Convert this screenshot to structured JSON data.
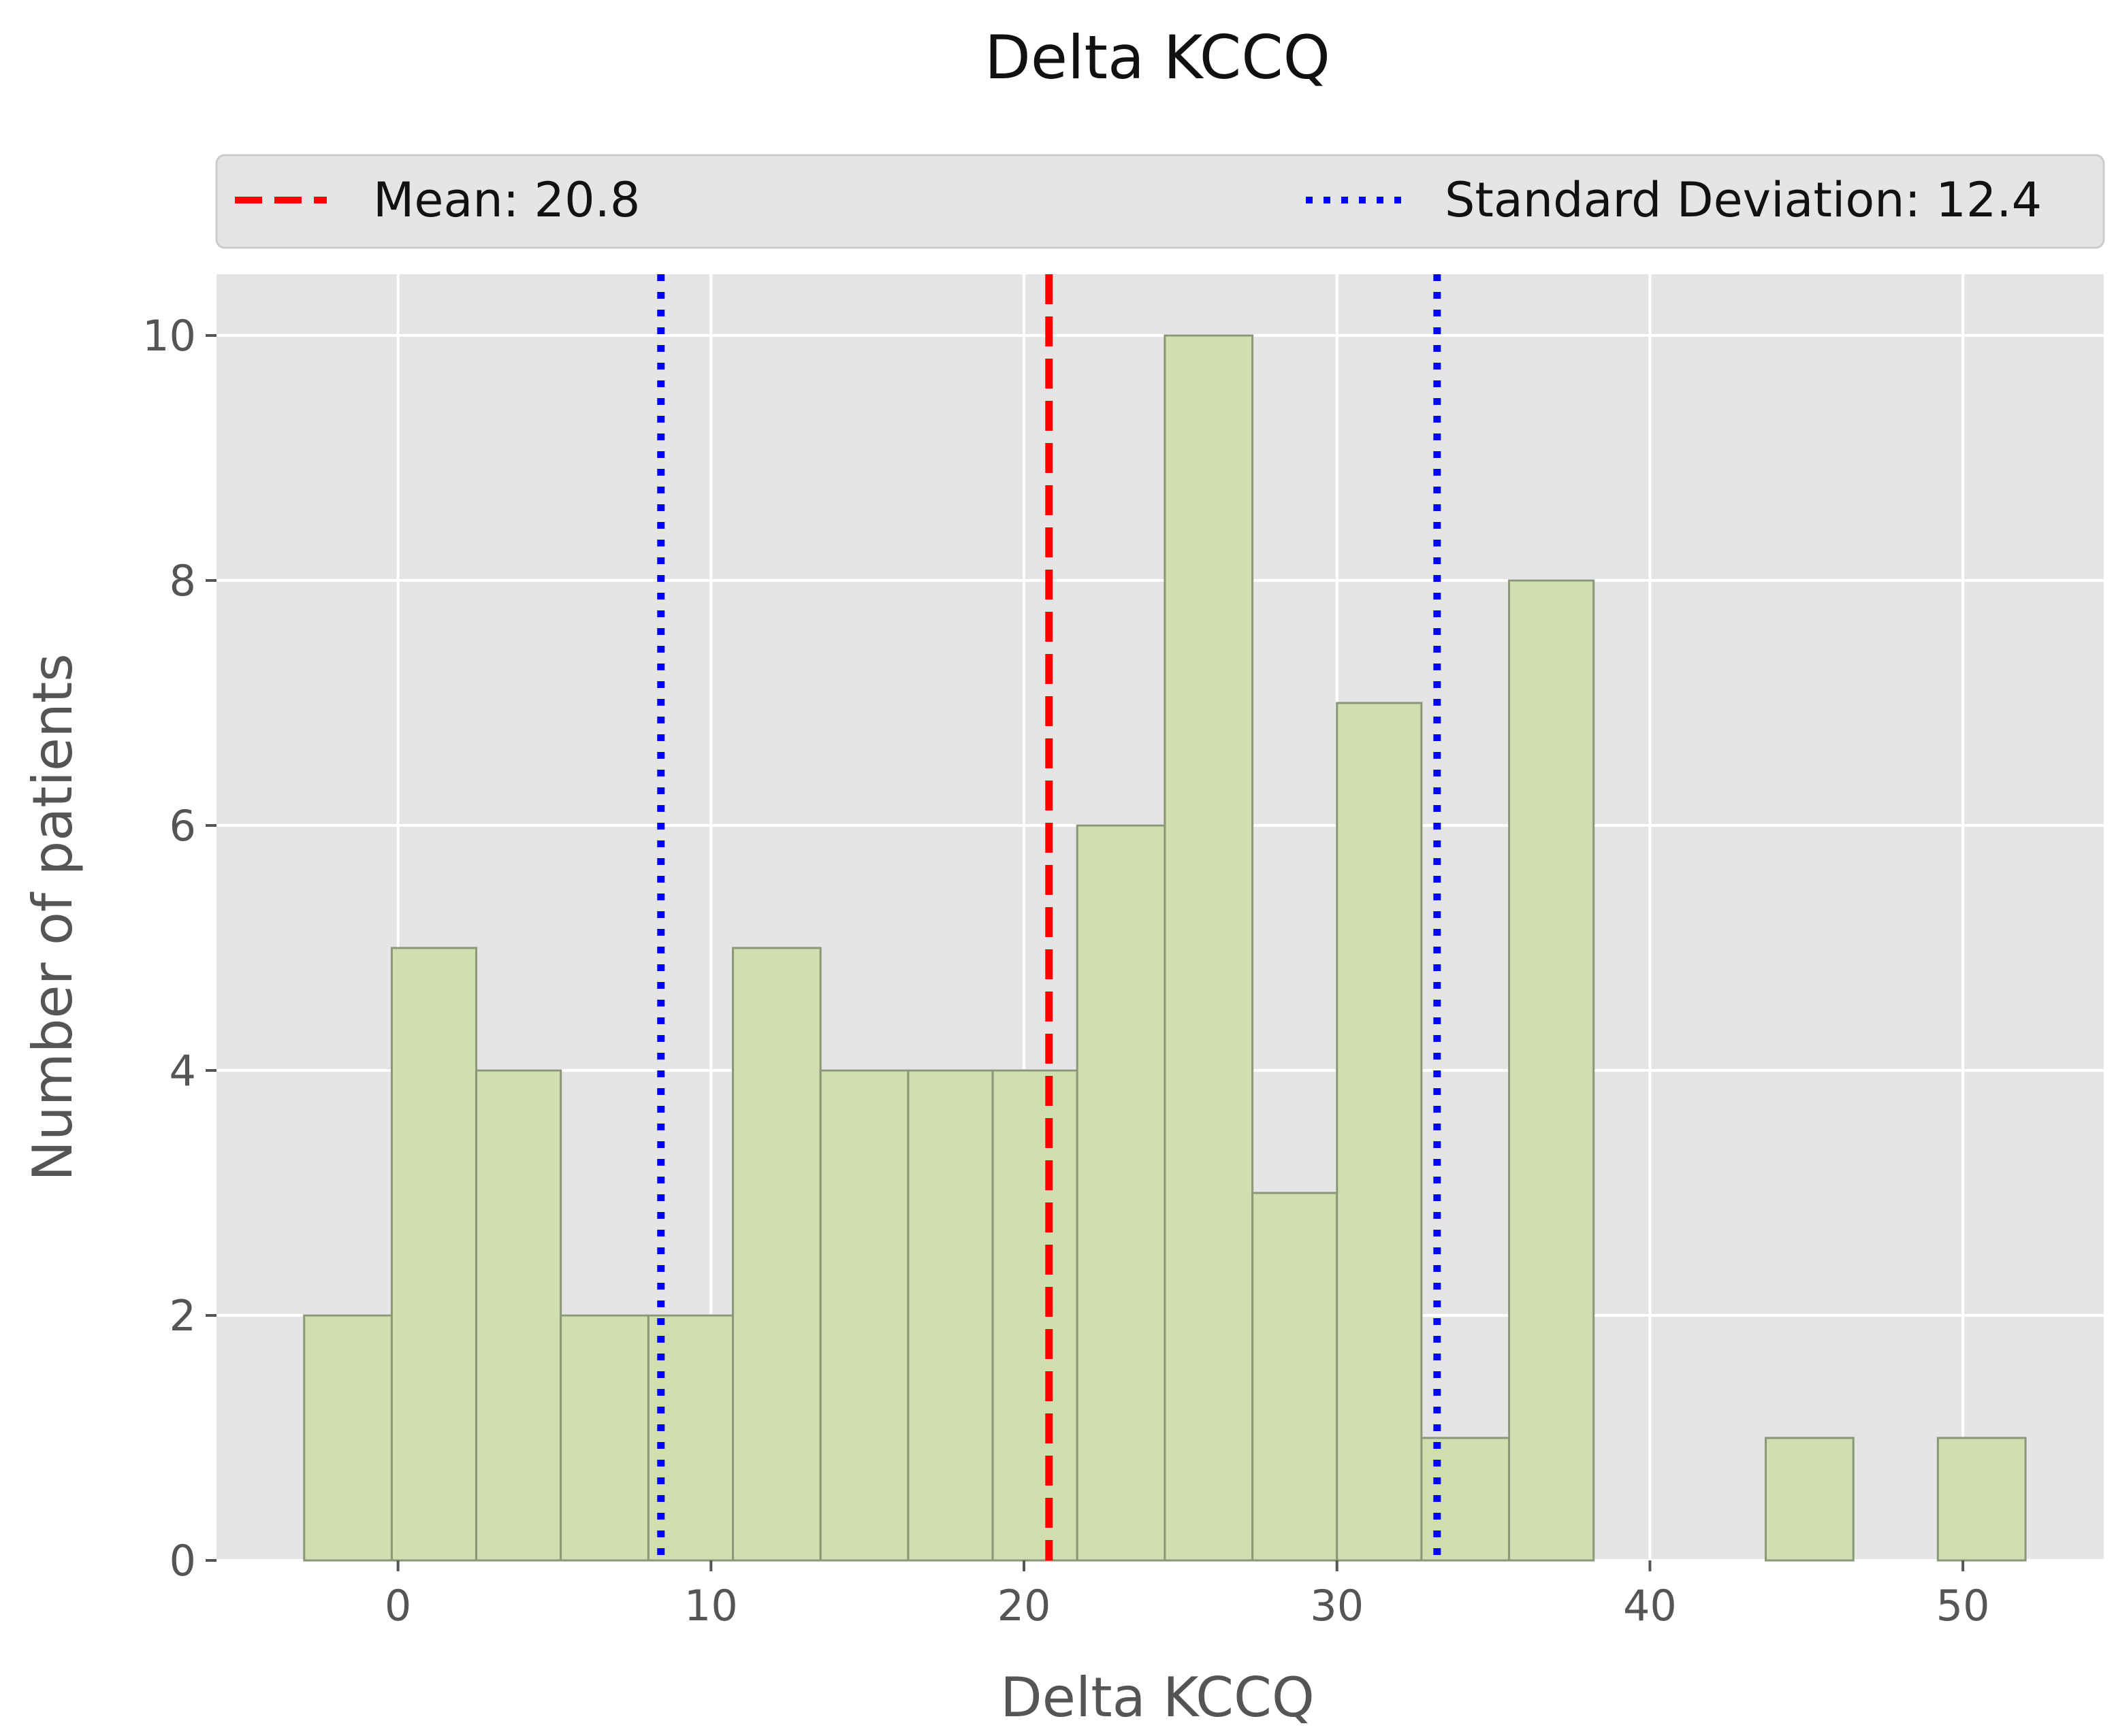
{
  "chart_data": {
    "type": "histogram",
    "title": "Delta KCCQ",
    "xlabel": "Delta KCCQ",
    "ylabel": "Number of patients",
    "xlim": [
      -5.8,
      54.5
    ],
    "ylim": [
      0,
      10.5
    ],
    "xticks": [
      0,
      10,
      20,
      30,
      40,
      50
    ],
    "yticks": [
      0,
      2,
      4,
      6,
      8,
      10
    ],
    "grid": true,
    "legend_position": "top (above plot, spanning width)",
    "bins": [
      {
        "start": -3.0,
        "end": -0.2,
        "count": 2
      },
      {
        "start": -0.2,
        "end": 2.5,
        "count": 5
      },
      {
        "start": 2.5,
        "end": 5.2,
        "count": 4
      },
      {
        "start": 5.2,
        "end": 8.0,
        "count": 2
      },
      {
        "start": 8.0,
        "end": 10.7,
        "count": 2
      },
      {
        "start": 10.7,
        "end": 13.5,
        "count": 5
      },
      {
        "start": 13.5,
        "end": 16.3,
        "count": 4
      },
      {
        "start": 16.3,
        "end": 19.0,
        "count": 4
      },
      {
        "start": 19.0,
        "end": 21.7,
        "count": 4
      },
      {
        "start": 21.7,
        "end": 24.5,
        "count": 6
      },
      {
        "start": 24.5,
        "end": 27.3,
        "count": 10
      },
      {
        "start": 27.3,
        "end": 30.0,
        "count": 3
      },
      {
        "start": 30.0,
        "end": 32.7,
        "count": 7
      },
      {
        "start": 32.7,
        "end": 35.5,
        "count": 1
      },
      {
        "start": 35.5,
        "end": 38.2,
        "count": 8
      },
      {
        "start": 38.2,
        "end": 41.0,
        "count": 0
      },
      {
        "start": 41.0,
        "end": 43.7,
        "count": 0
      },
      {
        "start": 43.7,
        "end": 46.5,
        "count": 1
      },
      {
        "start": 46.5,
        "end": 49.2,
        "count": 0
      },
      {
        "start": 49.2,
        "end": 52.0,
        "count": 1
      }
    ],
    "mean": 20.8,
    "std": 12.4,
    "lines": [
      {
        "name": "mean",
        "x": 20.8,
        "color": "#ff0000",
        "style": "dashed"
      },
      {
        "name": "sd-lower",
        "x": 8.4,
        "color": "#0000ff",
        "style": "dotted"
      },
      {
        "name": "sd-upper",
        "x": 33.2,
        "color": "#0000ff",
        "style": "dotted"
      }
    ],
    "legend": {
      "mean_label": "Mean: 20.8",
      "sd_label": "Standard Deviation: 12.4"
    },
    "colors": {
      "bar_fill": "#d0deb0",
      "bar_edge": "#8a9878",
      "plot_bg": "#e5e5e5",
      "grid": "#ffffff",
      "mean": "#ff0000",
      "sd": "#0000ff"
    }
  }
}
